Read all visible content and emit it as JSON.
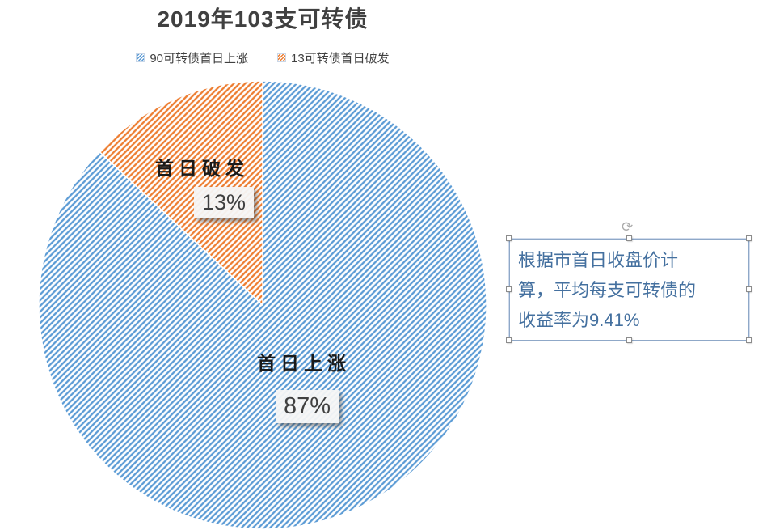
{
  "chart_data": {
    "type": "pie",
    "title": "2019年103支可转债",
    "legend_position": "top",
    "categories": [
      "90可转债首日上涨",
      "13可转债首日破发"
    ],
    "values": [
      87,
      13
    ],
    "slices": [
      {
        "legend_label": "90可转债首日上涨",
        "count": 90,
        "percent": 87,
        "pct_label": "87%",
        "callout": "首日上涨",
        "color": "#5B9BD5",
        "pattern": "diagonal-hatch"
      },
      {
        "legend_label": "13可转债首日破发",
        "count": 13,
        "percent": 13,
        "pct_label": "13%",
        "callout": "首日破发",
        "color": "#ED7D31",
        "pattern": "diagonal-hatch"
      }
    ]
  },
  "textbox": {
    "lines": [
      "根据市首日收盘价计",
      "算，平均每支可转债的",
      "收益率为9.41%"
    ],
    "full_text": "根据市首日收盘价计算，平均每支可转债的收益率为9.41%",
    "text_color": "#44709F",
    "border_color": "#8FA8C8"
  }
}
